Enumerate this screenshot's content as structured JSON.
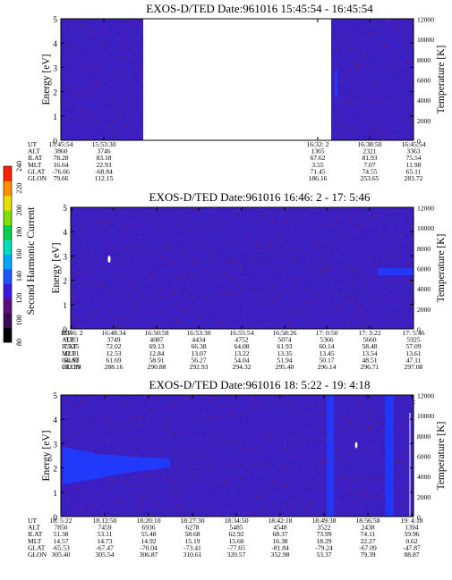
{
  "colors": {
    "background": "#3b1fc0",
    "grid": "#a11a1c",
    "bright_band": "#1f3cff",
    "hot_spot": "#fffbe0"
  },
  "colorbar": {
    "label": "Second Harmonic Current",
    "ticks": [
      "80",
      "100",
      "120",
      "140",
      "160",
      "180",
      "200",
      "220",
      "240"
    ],
    "colors": [
      "#000000",
      "#3a0a55",
      "#5a1080",
      "#3a1ae0",
      "#1f55ff",
      "#00a8ff",
      "#00e0c0",
      "#00d050",
      "#80e000",
      "#e8e000",
      "#ff9000",
      "#ff2000"
    ]
  },
  "chart_data": [
    {
      "type": "heatmap",
      "title": "EXOS-D/TED   Date:961016  15:45:54 - 16:45:54",
      "ylabel": "Energy [eV]",
      "y2label": "Temperature [K]",
      "ylim": [
        0,
        5
      ],
      "y2lim": [
        0,
        12000
      ],
      "yticks": [
        "0",
        "1",
        "2",
        "3",
        "4",
        "5"
      ],
      "y2ticks": [
        "0",
        "2000",
        "4000",
        "6000",
        "8000",
        "10000",
        "12000"
      ],
      "data_gap": true,
      "table": {
        "row_labels": [
          "UT",
          "ALT",
          "ILAT",
          "MLT",
          "GLAT",
          "GLON"
        ],
        "columns": [
          [
            "15:45:54",
            "3860",
            "78.28",
            "16.64",
            "-76.66",
            "79.66"
          ],
          [
            "15:53:30",
            "3746",
            "83.18",
            "22.93",
            "-68.84",
            "112.15"
          ],
          [
            "16:32: 2",
            "1365",
            "67.62",
            "3.55",
            "71.45",
            "186.16"
          ],
          [
            "16:38:50",
            "2321",
            "81.93",
            "7.07",
            "74.55",
            "253.65"
          ],
          [
            "16:45:54",
            "3363",
            "75.54",
            "11.98",
            "65.11",
            "283.72"
          ]
        ]
      }
    },
    {
      "type": "heatmap",
      "title": "EXOS-D/TED   Date:961016  16:46: 2 - 17: 5:46",
      "ylabel": "Energy [eV]",
      "y2label": "Temperature [K]",
      "ylim": [
        0,
        5
      ],
      "y2lim": [
        0,
        12000
      ],
      "yticks": [
        "0",
        "1",
        "2",
        "3",
        "4",
        "5"
      ],
      "y2ticks": [
        "0",
        "2000",
        "4000",
        "6000",
        "8000",
        "10000",
        "12000"
      ],
      "table": {
        "row_labels": [
          "UT",
          "ALT",
          "ILAT",
          "MLT",
          "GLAT",
          "GLON"
        ],
        "columns": [
          [
            "16:46: 2",
            "3383",
            "75.35",
            "12.01",
            "64.93",
            "283.99"
          ],
          [
            "16:48:34",
            "3749",
            "72.02",
            "12.53",
            "61.69",
            "288.16"
          ],
          [
            "16:50:58",
            "4087",
            "69.13",
            "12.84",
            "58.91",
            "290.88"
          ],
          [
            "16:53:30",
            "4434",
            "66.38",
            "13.07",
            "56.27",
            "292.93"
          ],
          [
            "16:55:54",
            "4752",
            "64.08",
            "13.22",
            "54.04",
            "294.32"
          ],
          [
            "16:58:26",
            "5074",
            "61.93",
            "13.35",
            "51.94",
            "295.40"
          ],
          [
            "17: 0:50",
            "5366",
            "60.14",
            "13.45",
            "50.17",
            "296.14"
          ],
          [
            "17: 3:22",
            "5660",
            "58.48",
            "13.54",
            "48.51",
            "296.71"
          ],
          [
            "17: 5:46",
            "5925",
            "57.09",
            "13.61",
            "47.11",
            "297.08"
          ]
        ]
      }
    },
    {
      "type": "heatmap",
      "title": "EXOS-D/TED   Date:961016  18: 5:22 - 19: 4:18",
      "ylabel": "Energy [eV]",
      "y2label": "Temperature [K]",
      "ylim": [
        0,
        5
      ],
      "y2lim": [
        0,
        12000
      ],
      "yticks": [
        "0",
        "1",
        "2",
        "3",
        "4",
        "5"
      ],
      "y2ticks": [
        "0",
        "2000",
        "4000",
        "6000",
        "8000",
        "10000",
        "12000"
      ],
      "table": {
        "row_labels": [
          "UT",
          "ALT",
          "ILAT",
          "MLT",
          "GLAT",
          "GLON"
        ],
        "columns": [
          [
            "18: 5:22",
            "7850",
            "51.38",
            "14.57",
            "-65.53",
            "305.40"
          ],
          [
            "18:12:50",
            "7459",
            "53.11",
            "14.73",
            "-67.47",
            "305.54"
          ],
          [
            "18:20:10",
            "6936",
            "55.48",
            "14.92",
            "-70.04",
            "306.87"
          ],
          [
            "18:27:30",
            "6278",
            "58.68",
            "15.19",
            "-73.41",
            "310.61"
          ],
          [
            "18:34:50",
            "5485",
            "62.92",
            "15.60",
            "-77.65",
            "320.57"
          ],
          [
            "18:42:18",
            "4548",
            "68.37",
            "16.38",
            "-81.84",
            "352.98"
          ],
          [
            "18:49:38",
            "3522",
            "73.99",
            "18.29",
            "-79.24",
            "53.37"
          ],
          [
            "18:56:58",
            "2438",
            "74.11",
            "22.27",
            "-67.09",
            "79.39"
          ],
          [
            "19: 4:18",
            "1394",
            "59.96",
            "0.62",
            "-47.87",
            "88.87"
          ]
        ]
      }
    }
  ]
}
